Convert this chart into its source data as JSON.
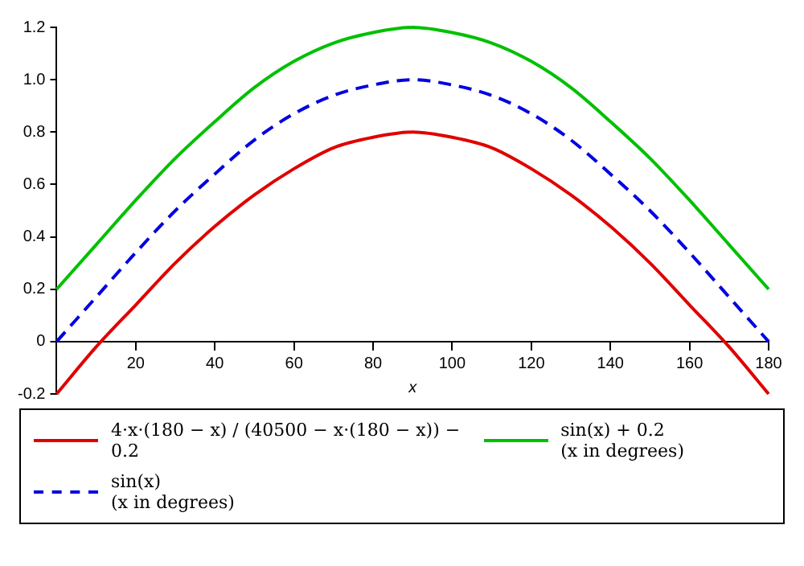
{
  "chart_data": {
    "type": "line",
    "xlabel": "x",
    "x": [
      0,
      10,
      20,
      30,
      40,
      50,
      60,
      70,
      80,
      90,
      100,
      110,
      120,
      130,
      140,
      150,
      160,
      170,
      180
    ],
    "series": [
      {
        "name": "4·x·(180 − x) / (40500 − x·(180 − x)) − 0.2",
        "color": "#e00000",
        "values": [
          -0.2,
          -0.02,
          0.14,
          0.3,
          0.44,
          0.56,
          0.66,
          0.74,
          0.78,
          0.8,
          0.78,
          0.74,
          0.66,
          0.56,
          0.44,
          0.3,
          0.14,
          -0.02,
          -0.2
        ]
      },
      {
        "name": "sin(x) + 0.2\n(x in degrees)",
        "color": "#00c000",
        "values": [
          0.2,
          0.37,
          0.54,
          0.7,
          0.84,
          0.97,
          1.07,
          1.14,
          1.18,
          1.2,
          1.18,
          1.14,
          1.07,
          0.97,
          0.84,
          0.7,
          0.54,
          0.37,
          0.2
        ]
      },
      {
        "name": "sin(x)\n(x in degrees)",
        "color": "#0000e0",
        "line_style": "dashed",
        "values": [
          0,
          0.17,
          0.34,
          0.5,
          0.64,
          0.77,
          0.87,
          0.94,
          0.98,
          1.0,
          0.98,
          0.94,
          0.87,
          0.77,
          0.64,
          0.5,
          0.34,
          0.17,
          0
        ]
      }
    ],
    "xlim": [
      0,
      180
    ],
    "xticks": [
      20,
      40,
      60,
      80,
      100,
      120,
      140,
      160,
      180
    ],
    "ylim": [
      -0.2,
      1.2
    ],
    "yticks": [
      -0.2,
      0,
      0.2,
      0.4,
      0.6,
      0.8,
      {
        "value": 1,
        "label": "1.0"
      },
      1.2
    ],
    "grid": false,
    "legend": "bottom",
    "marker": "none"
  }
}
